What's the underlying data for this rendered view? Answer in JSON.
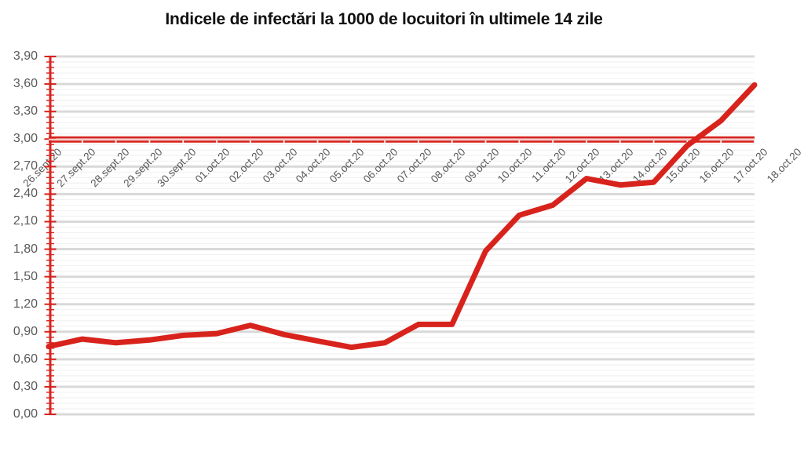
{
  "title": "Indicele de infectări la 1000 de locuitori în ultimele 14 zile",
  "colors": {
    "series_red": "#d8231d",
    "axis_red": "#d8231d",
    "grid_major": "#d9d9d9",
    "grid_minor": "#f2f2f2",
    "tick_label_gray": "#595959",
    "title_color": "#111111",
    "background": "#ffffff"
  },
  "chart_data": {
    "type": "line",
    "title": "Indicele de infectări la 1000 de locuitori în ultimele 14 zile",
    "categories": [
      "26.sept.20",
      "27.sept.20",
      "28.sept.20",
      "29.sept.20",
      "30.sept.20",
      "01.oct.20",
      "02.oct.20",
      "03.oct.20",
      "04.oct.20",
      "05.oct.20",
      "06.oct.20",
      "07.oct.20",
      "08.oct.20",
      "09.oct.20",
      "10.oct.20",
      "11.oct.20",
      "12.oct.20",
      "13.oct.20",
      "14.oct.20",
      "15.oct.20",
      "16.oct.20",
      "17.oct.20",
      "18.oct.20"
    ],
    "values": [
      0.74,
      0.82,
      0.78,
      0.81,
      0.86,
      0.88,
      0.97,
      0.87,
      0.8,
      0.73,
      0.78,
      0.98,
      0.98,
      1.78,
      2.17,
      2.28,
      2.57,
      2.5,
      2.53,
      2.93,
      3.2,
      3.59
    ],
    "last_category_has_no_value": true,
    "threshold_line": 3.0,
    "xlabel": "",
    "ylabel": "",
    "ylim": [
      0.0,
      3.9
    ],
    "y_tick_step": 0.3,
    "y_tick_labels": [
      "0,00",
      "0,30",
      "0,60",
      "0,90",
      "1,20",
      "1,50",
      "1,80",
      "2,10",
      "2,40",
      "2,70",
      "3,00",
      "3,30",
      "3,60",
      "3,90"
    ],
    "x_tick_rotation": 45,
    "grid": "major+minor horizontal",
    "legend": "none",
    "x_axis_position": "crosses y at 3,00 (red double line with white category notches)"
  }
}
